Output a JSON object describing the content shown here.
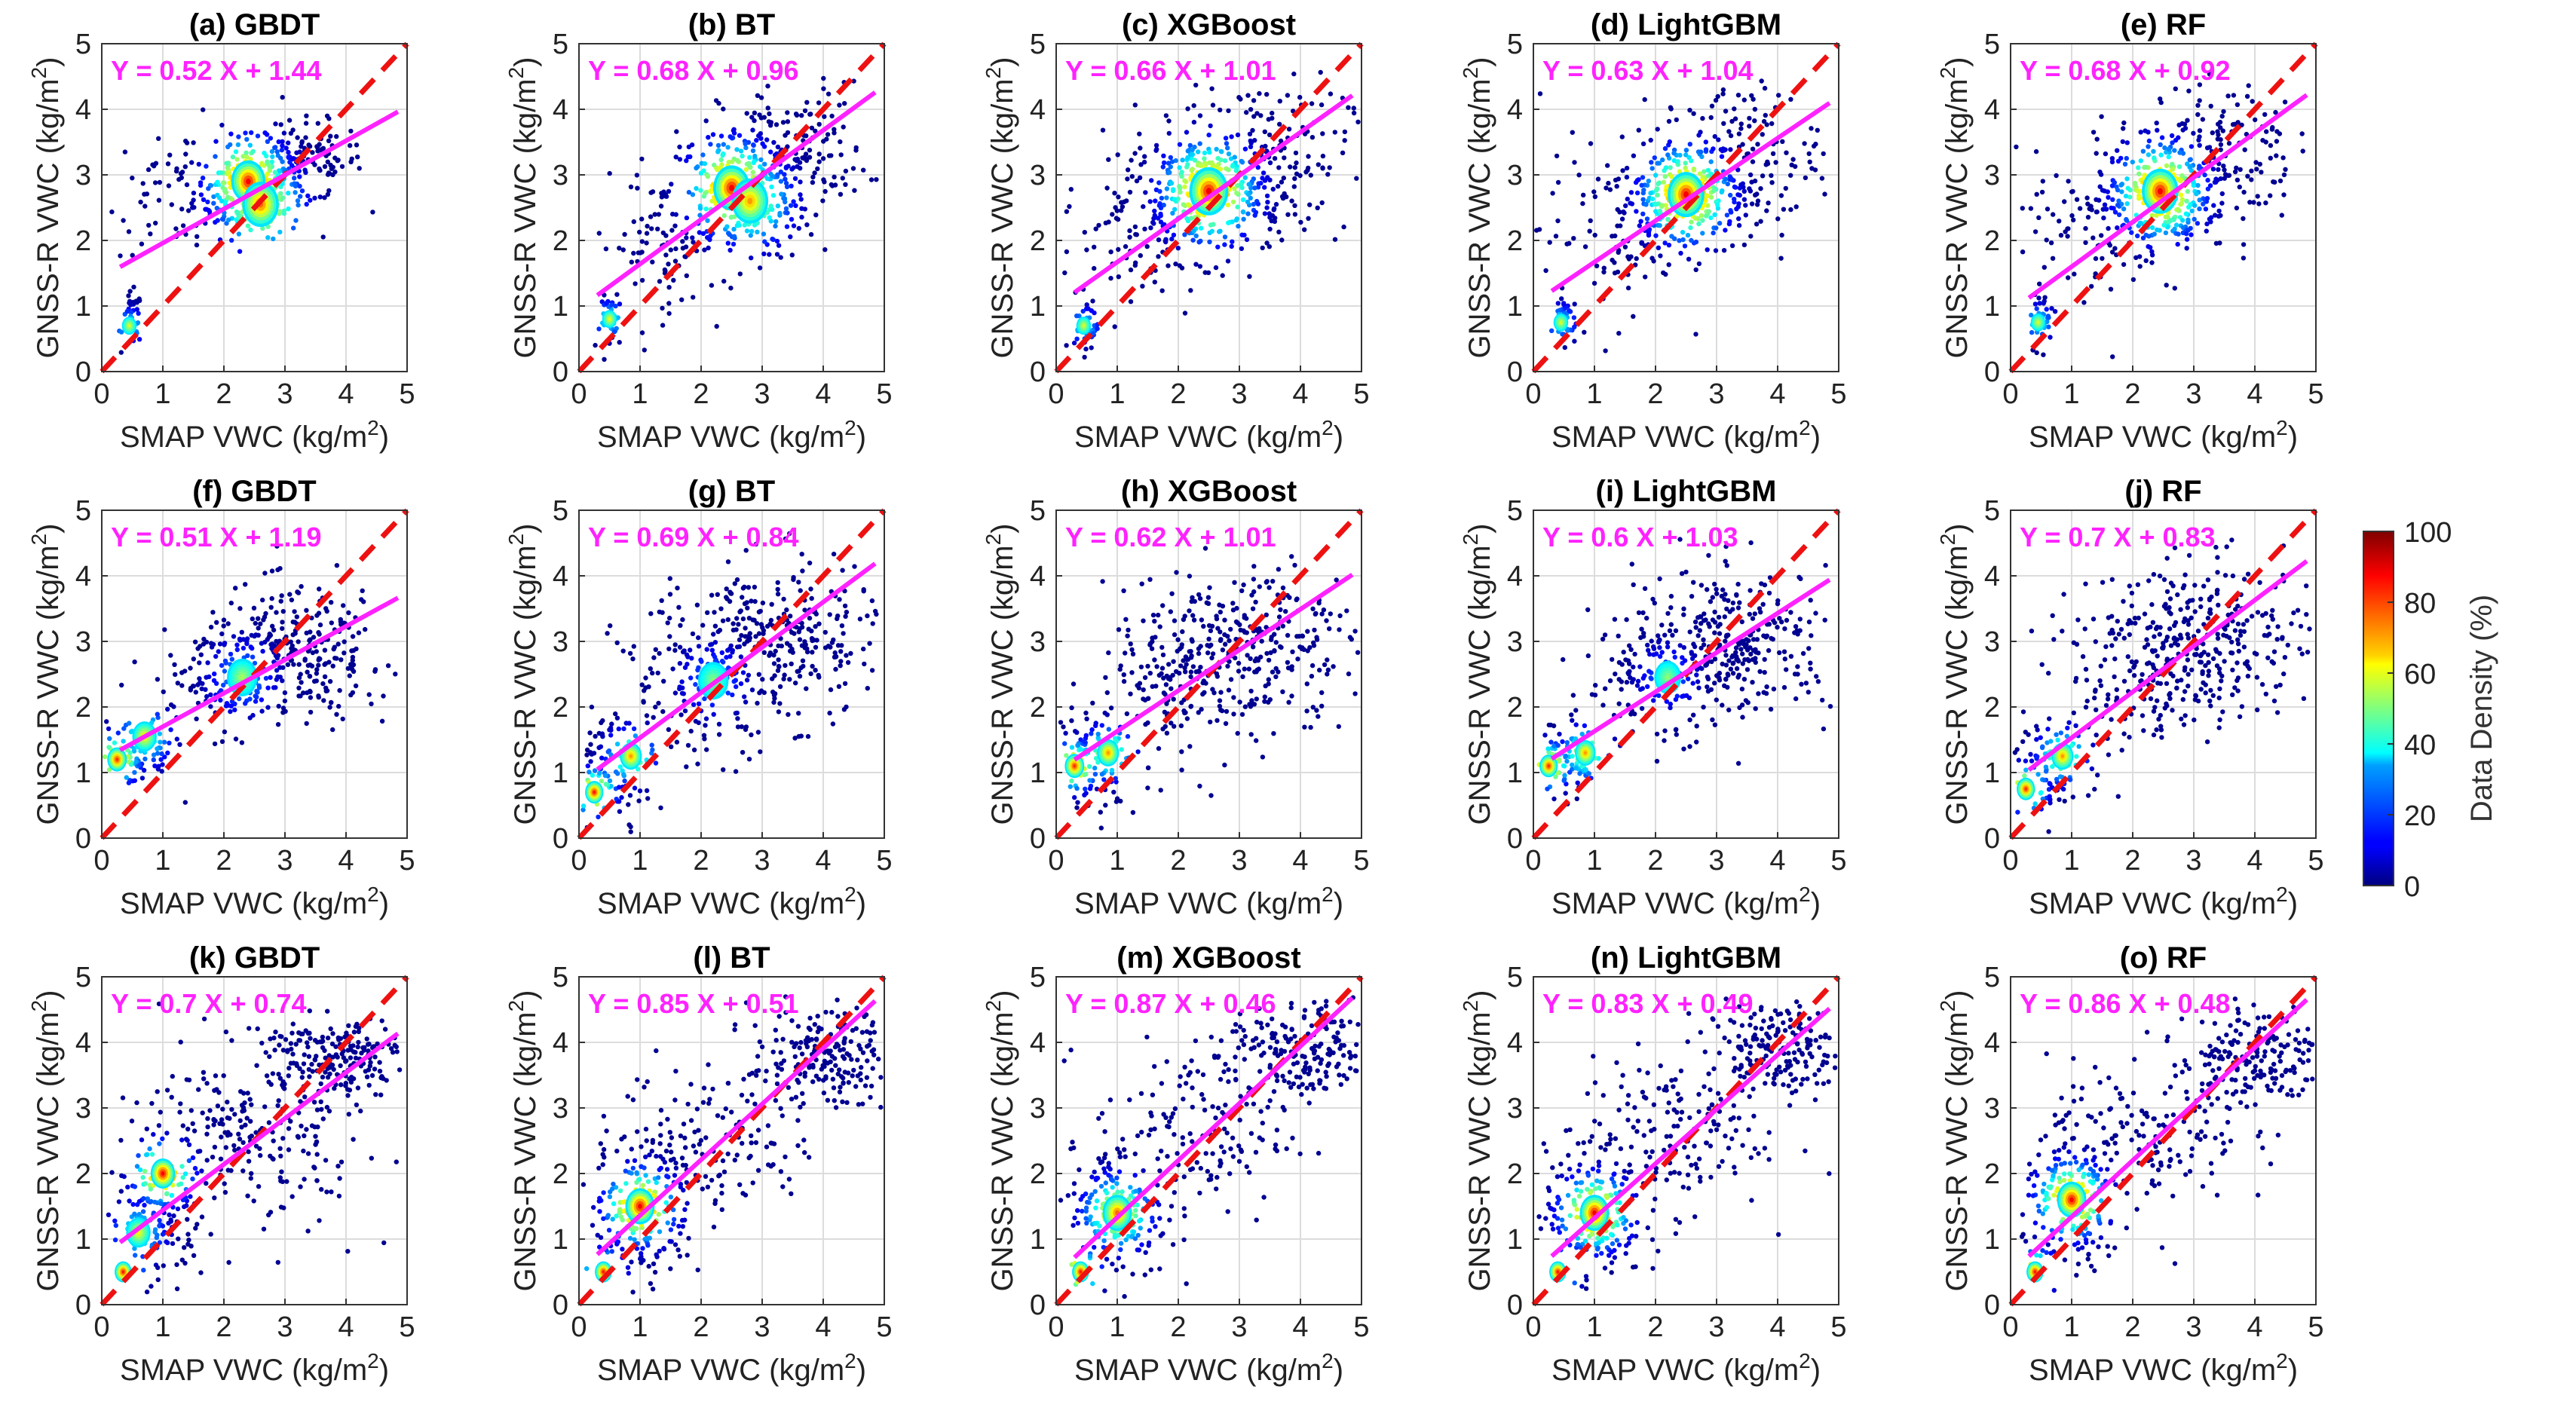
{
  "chart_data": {
    "type": "scatter",
    "variant": "density-scatter grid",
    "axis_range": {
      "x": [
        0,
        5
      ],
      "y": [
        0,
        5
      ]
    },
    "ticks": [
      0,
      1,
      2,
      3,
      4,
      5
    ],
    "xlabel": {
      "main": "SMAP VWC (kg/m",
      "sup": "2",
      "end": ")"
    },
    "ylabel": {
      "main": "GNSS-R VWC (kg/m",
      "sup": "2",
      "end": ")"
    },
    "grid": true,
    "colors": {
      "one_to_one": "#ee1111",
      "fit_line": "#ff22ff",
      "equation": "#ff22ff"
    },
    "one_to_one_line": {
      "slope": 1,
      "intercept": 0,
      "style": "dashed"
    },
    "panels": [
      {
        "id": "a",
        "title": "(a) GBDT",
        "slope": 0.52,
        "intercept": 1.44,
        "equation": "Y = 0.52 X + 1.44",
        "clusters": [
          {
            "x": 2.4,
            "y": 2.75,
            "sx": 0.45,
            "sy": 0.35,
            "n": 260
          },
          {
            "x": 3.2,
            "y": 3.2,
            "sx": 0.55,
            "sy": 0.3,
            "n": 150
          },
          {
            "x": 0.5,
            "y": 0.8,
            "sx": 0.08,
            "sy": 0.2,
            "n": 40
          },
          {
            "x": 1.3,
            "y": 2.8,
            "sx": 0.6,
            "sy": 0.5,
            "n": 60
          }
        ],
        "hotspots": [
          {
            "x": 2.4,
            "y": 2.9,
            "heat": 1.0,
            "r": 0.28
          },
          {
            "x": 2.6,
            "y": 2.55,
            "heat": 0.8,
            "r": 0.3
          },
          {
            "x": 0.45,
            "y": 0.7,
            "heat": 0.45,
            "r": 0.12
          }
        ]
      },
      {
        "id": "b",
        "title": "(b) BT",
        "slope": 0.68,
        "intercept": 0.96,
        "equation": "Y = 0.68 X + 0.96",
        "clusters": [
          {
            "x": 2.6,
            "y": 2.7,
            "sx": 0.6,
            "sy": 0.5,
            "n": 300
          },
          {
            "x": 3.5,
            "y": 3.4,
            "sx": 0.6,
            "sy": 0.5,
            "n": 140
          },
          {
            "x": 1.3,
            "y": 1.9,
            "sx": 0.5,
            "sy": 0.5,
            "n": 80
          },
          {
            "x": 0.55,
            "y": 0.75,
            "sx": 0.1,
            "sy": 0.2,
            "n": 40
          }
        ],
        "hotspots": [
          {
            "x": 2.5,
            "y": 2.8,
            "heat": 1.0,
            "r": 0.3
          },
          {
            "x": 2.8,
            "y": 2.6,
            "heat": 0.7,
            "r": 0.3
          },
          {
            "x": 0.5,
            "y": 0.8,
            "heat": 0.5,
            "r": 0.12
          }
        ]
      },
      {
        "id": "c",
        "title": "(c) XGBoost",
        "slope": 0.66,
        "intercept": 1.01,
        "equation": "Y = 0.66 X + 1.01",
        "clusters": [
          {
            "x": 2.5,
            "y": 2.7,
            "sx": 0.6,
            "sy": 0.5,
            "n": 300
          },
          {
            "x": 3.4,
            "y": 3.3,
            "sx": 0.7,
            "sy": 0.6,
            "n": 160
          },
          {
            "x": 1.3,
            "y": 2.2,
            "sx": 0.6,
            "sy": 0.7,
            "n": 100
          },
          {
            "x": 0.5,
            "y": 0.7,
            "sx": 0.1,
            "sy": 0.2,
            "n": 40
          }
        ],
        "hotspots": [
          {
            "x": 2.5,
            "y": 2.75,
            "heat": 1.0,
            "r": 0.32
          },
          {
            "x": 0.45,
            "y": 0.7,
            "heat": 0.45,
            "r": 0.12
          }
        ]
      },
      {
        "id": "d",
        "title": "(d) LightGBM",
        "slope": 0.63,
        "intercept": 1.04,
        "equation": "Y = 0.63 X + 1.04",
        "clusters": [
          {
            "x": 2.5,
            "y": 2.7,
            "sx": 0.55,
            "sy": 0.45,
            "n": 280
          },
          {
            "x": 3.4,
            "y": 3.3,
            "sx": 0.65,
            "sy": 0.55,
            "n": 150
          },
          {
            "x": 1.3,
            "y": 2.1,
            "sx": 0.6,
            "sy": 0.6,
            "n": 90
          },
          {
            "x": 0.5,
            "y": 0.8,
            "sx": 0.1,
            "sy": 0.2,
            "n": 40
          }
        ],
        "hotspots": [
          {
            "x": 2.5,
            "y": 2.7,
            "heat": 1.0,
            "r": 0.3
          },
          {
            "x": 0.45,
            "y": 0.75,
            "heat": 0.45,
            "r": 0.12
          }
        ]
      },
      {
        "id": "e",
        "title": "(e) RF",
        "slope": 0.68,
        "intercept": 0.92,
        "equation": "Y = 0.68 X + 0.92",
        "clusters": [
          {
            "x": 2.5,
            "y": 2.7,
            "sx": 0.55,
            "sy": 0.45,
            "n": 280
          },
          {
            "x": 3.4,
            "y": 3.4,
            "sx": 0.65,
            "sy": 0.55,
            "n": 150
          },
          {
            "x": 1.3,
            "y": 2.1,
            "sx": 0.6,
            "sy": 0.6,
            "n": 90
          },
          {
            "x": 0.5,
            "y": 0.8,
            "sx": 0.1,
            "sy": 0.2,
            "n": 40
          }
        ],
        "hotspots": [
          {
            "x": 2.45,
            "y": 2.75,
            "heat": 1.0,
            "r": 0.3
          },
          {
            "x": 0.45,
            "y": 0.75,
            "heat": 0.45,
            "r": 0.12
          }
        ]
      },
      {
        "id": "f",
        "title": "(f) GBDT",
        "slope": 0.51,
        "intercept": 1.19,
        "equation": "Y = 0.51 X + 1.19",
        "clusters": [
          {
            "x": 3.2,
            "y": 2.8,
            "sx": 0.8,
            "sy": 0.5,
            "n": 280
          },
          {
            "x": 2.0,
            "y": 2.4,
            "sx": 0.6,
            "sy": 0.4,
            "n": 120
          },
          {
            "x": 0.6,
            "y": 1.3,
            "sx": 0.3,
            "sy": 0.25,
            "n": 100
          }
        ],
        "hotspots": [
          {
            "x": 0.25,
            "y": 1.2,
            "heat": 0.9,
            "r": 0.16
          },
          {
            "x": 0.7,
            "y": 1.55,
            "heat": 0.55,
            "r": 0.2
          },
          {
            "x": 2.3,
            "y": 2.45,
            "heat": 0.35,
            "r": 0.25
          }
        ]
      },
      {
        "id": "g",
        "title": "(g) BT",
        "slope": 0.69,
        "intercept": 0.84,
        "equation": "Y = 0.69 X + 0.84",
        "clusters": [
          {
            "x": 3.3,
            "y": 3.0,
            "sx": 0.8,
            "sy": 0.6,
            "n": 280
          },
          {
            "x": 2.0,
            "y": 2.4,
            "sx": 0.7,
            "sy": 0.6,
            "n": 140
          },
          {
            "x": 0.6,
            "y": 1.1,
            "sx": 0.35,
            "sy": 0.4,
            "n": 110
          }
        ],
        "hotspots": [
          {
            "x": 0.25,
            "y": 0.7,
            "heat": 0.95,
            "r": 0.15
          },
          {
            "x": 0.85,
            "y": 1.25,
            "heat": 0.7,
            "r": 0.18
          },
          {
            "x": 2.2,
            "y": 2.4,
            "heat": 0.3,
            "r": 0.25
          }
        ]
      },
      {
        "id": "h",
        "title": "(h) XGBoost",
        "slope": 0.62,
        "intercept": 1.01,
        "equation": "Y = 0.62 X + 1.01",
        "clusters": [
          {
            "x": 3.2,
            "y": 3.0,
            "sx": 0.9,
            "sy": 0.6,
            "n": 280
          },
          {
            "x": 1.8,
            "y": 2.2,
            "sx": 0.7,
            "sy": 0.6,
            "n": 150
          },
          {
            "x": 0.6,
            "y": 1.2,
            "sx": 0.35,
            "sy": 0.4,
            "n": 120
          }
        ],
        "hotspots": [
          {
            "x": 0.3,
            "y": 1.1,
            "heat": 0.9,
            "r": 0.16
          },
          {
            "x": 0.85,
            "y": 1.3,
            "heat": 0.7,
            "r": 0.18
          }
        ]
      },
      {
        "id": "i",
        "title": "(i) LightGBM",
        "slope": 0.6,
        "intercept": 1.03,
        "equation": "Y = 0.6 X + 1.03",
        "clusters": [
          {
            "x": 3.3,
            "y": 3.0,
            "sx": 0.8,
            "sy": 0.55,
            "n": 280
          },
          {
            "x": 2.0,
            "y": 2.4,
            "sx": 0.6,
            "sy": 0.5,
            "n": 130
          },
          {
            "x": 0.6,
            "y": 1.2,
            "sx": 0.3,
            "sy": 0.3,
            "n": 110
          }
        ],
        "hotspots": [
          {
            "x": 0.25,
            "y": 1.1,
            "heat": 0.9,
            "r": 0.15
          },
          {
            "x": 0.85,
            "y": 1.3,
            "heat": 0.7,
            "r": 0.17
          },
          {
            "x": 2.2,
            "y": 2.45,
            "heat": 0.3,
            "r": 0.22
          }
        ]
      },
      {
        "id": "j",
        "title": "(j) RF",
        "slope": 0.7,
        "intercept": 0.83,
        "equation": "Y = 0.7 X + 0.83",
        "clusters": [
          {
            "x": 3.3,
            "y": 3.0,
            "sx": 0.8,
            "sy": 0.6,
            "n": 280
          },
          {
            "x": 2.0,
            "y": 2.4,
            "sx": 0.7,
            "sy": 0.6,
            "n": 130
          },
          {
            "x": 0.6,
            "y": 1.1,
            "sx": 0.35,
            "sy": 0.35,
            "n": 110
          }
        ],
        "hotspots": [
          {
            "x": 0.25,
            "y": 0.75,
            "heat": 0.9,
            "r": 0.15
          },
          {
            "x": 0.85,
            "y": 1.25,
            "heat": 0.7,
            "r": 0.18
          }
        ]
      },
      {
        "id": "k",
        "title": "(k) GBDT",
        "slope": 0.7,
        "intercept": 0.74,
        "equation": "Y = 0.7 X + 0.74",
        "clusters": [
          {
            "x": 3.8,
            "y": 3.8,
            "sx": 0.6,
            "sy": 0.3,
            "n": 200
          },
          {
            "x": 2.2,
            "y": 2.8,
            "sx": 0.8,
            "sy": 0.6,
            "n": 150
          },
          {
            "x": 0.9,
            "y": 1.4,
            "sx": 0.4,
            "sy": 0.5,
            "n": 180
          },
          {
            "x": 3.0,
            "y": 2.3,
            "sx": 0.7,
            "sy": 0.6,
            "n": 80
          }
        ],
        "hotspots": [
          {
            "x": 1.0,
            "y": 2.0,
            "heat": 1.0,
            "r": 0.2
          },
          {
            "x": 0.35,
            "y": 0.5,
            "heat": 0.95,
            "r": 0.14
          },
          {
            "x": 0.6,
            "y": 1.1,
            "heat": 0.5,
            "r": 0.2
          }
        ]
      },
      {
        "id": "l",
        "title": "(l) BT",
        "slope": 0.85,
        "intercept": 0.51,
        "equation": "Y = 0.85 X + 0.51",
        "clusters": [
          {
            "x": 4.0,
            "y": 3.8,
            "sx": 0.6,
            "sy": 0.35,
            "n": 200
          },
          {
            "x": 2.2,
            "y": 2.5,
            "sx": 0.8,
            "sy": 0.6,
            "n": 150
          },
          {
            "x": 1.0,
            "y": 1.4,
            "sx": 0.4,
            "sy": 0.5,
            "n": 200
          }
        ],
        "hotspots": [
          {
            "x": 1.0,
            "y": 1.5,
            "heat": 1.0,
            "r": 0.24
          },
          {
            "x": 0.4,
            "y": 0.5,
            "heat": 0.95,
            "r": 0.14
          }
        ]
      },
      {
        "id": "m",
        "title": "(m) XGBoost",
        "slope": 0.87,
        "intercept": 0.46,
        "equation": "Y = 0.87 X + 0.46",
        "clusters": [
          {
            "x": 4.0,
            "y": 3.8,
            "sx": 0.6,
            "sy": 0.4,
            "n": 200
          },
          {
            "x": 2.2,
            "y": 2.6,
            "sx": 0.8,
            "sy": 0.7,
            "n": 150
          },
          {
            "x": 1.0,
            "y": 1.4,
            "sx": 0.4,
            "sy": 0.5,
            "n": 200
          }
        ],
        "hotspots": [
          {
            "x": 1.0,
            "y": 1.4,
            "heat": 0.8,
            "r": 0.24
          },
          {
            "x": 0.4,
            "y": 0.5,
            "heat": 0.95,
            "r": 0.14
          }
        ]
      },
      {
        "id": "n",
        "title": "(n) LightGBM",
        "slope": 0.83,
        "intercept": 0.49,
        "equation": "Y = 0.83 X + 0.49",
        "clusters": [
          {
            "x": 4.0,
            "y": 3.9,
            "sx": 0.6,
            "sy": 0.35,
            "n": 200
          },
          {
            "x": 2.2,
            "y": 2.6,
            "sx": 0.8,
            "sy": 0.6,
            "n": 150
          },
          {
            "x": 1.0,
            "y": 1.4,
            "sx": 0.4,
            "sy": 0.5,
            "n": 200
          }
        ],
        "hotspots": [
          {
            "x": 1.0,
            "y": 1.4,
            "heat": 1.0,
            "r": 0.24
          },
          {
            "x": 0.4,
            "y": 0.5,
            "heat": 0.95,
            "r": 0.14
          }
        ]
      },
      {
        "id": "o",
        "title": "(o) RF",
        "slope": 0.86,
        "intercept": 0.48,
        "equation": "Y = 0.86 X + 0.48",
        "clusters": [
          {
            "x": 4.0,
            "y": 3.8,
            "sx": 0.6,
            "sy": 0.4,
            "n": 200
          },
          {
            "x": 2.2,
            "y": 2.5,
            "sx": 0.8,
            "sy": 0.6,
            "n": 150
          },
          {
            "x": 1.0,
            "y": 1.5,
            "sx": 0.4,
            "sy": 0.5,
            "n": 200
          }
        ],
        "hotspots": [
          {
            "x": 1.0,
            "y": 1.6,
            "heat": 1.0,
            "r": 0.24
          },
          {
            "x": 0.4,
            "y": 0.5,
            "heat": 0.95,
            "r": 0.14
          }
        ]
      }
    ],
    "colorbar": {
      "label": "Data Density (%)",
      "ticks": [
        0,
        20,
        40,
        60,
        80,
        100
      ],
      "range": [
        0,
        100
      ],
      "colormap": "jet"
    }
  }
}
